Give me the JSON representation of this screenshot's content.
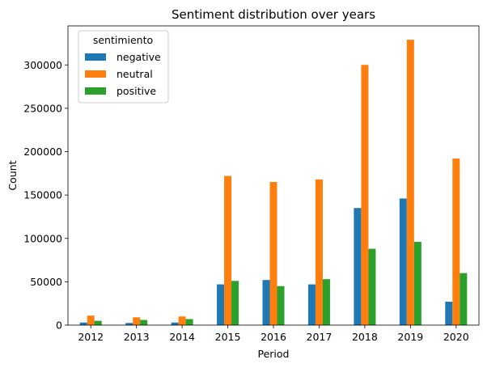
{
  "chart_data": {
    "type": "bar",
    "title": "Sentiment distribution over years",
    "xlabel": "Period",
    "ylabel": "Count",
    "categories": [
      "2012",
      "2013",
      "2014",
      "2015",
      "2016",
      "2017",
      "2018",
      "2019",
      "2020"
    ],
    "series": [
      {
        "name": "negative",
        "color": "#1f77b4",
        "values": [
          3000,
          2500,
          3000,
          47000,
          52000,
          47000,
          135000,
          146000,
          27000
        ]
      },
      {
        "name": "neutral",
        "color": "#ff7f0e",
        "values": [
          11000,
          9000,
          10000,
          172000,
          165000,
          168000,
          300000,
          329000,
          192000
        ]
      },
      {
        "name": "positive",
        "color": "#2ca02c",
        "values": [
          5000,
          6000,
          7000,
          51000,
          45000,
          53000,
          88000,
          96000,
          60000
        ]
      }
    ],
    "ylim": [
      0,
      345000
    ],
    "yticks": [
      0,
      50000,
      100000,
      150000,
      200000,
      250000,
      300000
    ],
    "ytick_labels": [
      "0",
      "50000",
      "100000",
      "150000",
      "200000",
      "250000",
      "300000"
    ],
    "legend": {
      "title": "sentimiento",
      "placement": "top-left"
    },
    "grid": false
  }
}
